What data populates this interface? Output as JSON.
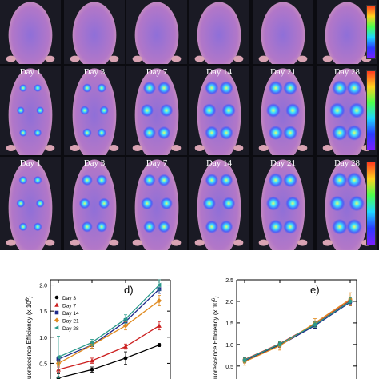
{
  "imaging": {
    "rows": [
      {
        "labels": [
          "",
          "",
          "",
          "",
          "",
          ""
        ],
        "intensity": [
          0.05,
          0.05,
          0.05,
          0.05,
          0.05,
          0.05
        ]
      },
      {
        "labels": [
          "Day 1",
          "Day 3",
          "Day 7",
          "Day 14",
          "Day 21",
          "Day 28"
        ],
        "intensity": [
          0.25,
          0.35,
          0.65,
          0.7,
          0.75,
          0.85
        ]
      },
      {
        "labels": [
          "Day 1",
          "Day 3",
          "Day 7",
          "Day 14",
          "Day 21",
          "Day 28"
        ],
        "intensity": [
          0.3,
          0.5,
          0.6,
          0.65,
          0.75,
          0.85
        ]
      }
    ],
    "colorbar_colors": [
      "#ff3b1f",
      "#ffd21f",
      "#4dff4d",
      "#1fd8ff",
      "#2a3cff",
      "#7a1fff"
    ]
  },
  "chart_data": [
    {
      "type": "line",
      "panel_label": "d)",
      "ylabel": "uorescence Efficiency (x 10",
      "ylabel_exp": "6",
      "ylabel_close": ")",
      "ylim": [
        0.2,
        2.1
      ],
      "yticks": [
        0.5,
        1.0,
        1.5,
        2.0
      ],
      "ytick_labels": [
        "0.5",
        "1.0",
        "1.5",
        "2.0"
      ],
      "x": [
        1,
        2,
        3,
        4
      ],
      "legend_position": "top-left",
      "series": [
        {
          "name": "Day 3",
          "color": "#000000",
          "marker": "circle",
          "values": [
            0.22,
            0.38,
            0.6,
            0.85
          ],
          "errors": [
            0.08,
            0.05,
            0.12,
            0.03
          ]
        },
        {
          "name": "Day 7",
          "color": "#cc1f1f",
          "marker": "triangle-up",
          "values": [
            0.38,
            0.55,
            0.82,
            1.22
          ],
          "errors": [
            0.05,
            0.05,
            0.05,
            0.08
          ]
        },
        {
          "name": "Day 14",
          "color": "#1f2a8a",
          "marker": "square",
          "values": [
            0.58,
            0.85,
            1.3,
            1.92
          ],
          "errors": [
            0.05,
            0.06,
            0.06,
            0.08
          ]
        },
        {
          "name": "Day 21",
          "color": "#e08a1f",
          "marker": "diamond",
          "values": [
            0.5,
            0.85,
            1.22,
            1.7
          ],
          "errors": [
            0.05,
            0.06,
            0.08,
            0.1
          ]
        },
        {
          "name": "Day 28",
          "color": "#2a9a8a",
          "marker": "triangle-left",
          "values": [
            0.62,
            0.9,
            1.35,
            2.0
          ],
          "errors": [
            0.4,
            0.06,
            0.08,
            0.1
          ]
        }
      ]
    },
    {
      "type": "line",
      "panel_label": "e)",
      "ylabel": "uorescence Efficiency (x 10",
      "ylabel_exp": "6",
      "ylabel_close": ")",
      "ylim": [
        0.2,
        2.5
      ],
      "yticks": [
        0.5,
        1.0,
        1.5,
        2.0,
        2.5
      ],
      "ytick_labels": [
        "0.5",
        "1.0",
        "1.5",
        "2.0",
        "2.5"
      ],
      "x": [
        1,
        2,
        3,
        4
      ],
      "series": [
        {
          "color": "#000000",
          "values": [
            0.63,
            1.0,
            1.45,
            2.0
          ],
          "errors": [
            0.05,
            0.05,
            0.08,
            0.1
          ]
        },
        {
          "color": "#cc1f1f",
          "values": [
            0.65,
            1.02,
            1.47,
            2.02
          ],
          "errors": [
            0.05,
            0.05,
            0.06,
            0.08
          ]
        },
        {
          "color": "#1f2a8a",
          "values": [
            0.62,
            0.98,
            1.44,
            1.98
          ],
          "errors": [
            0.05,
            0.05,
            0.06,
            0.08
          ]
        },
        {
          "color": "#e08a1f",
          "values": [
            0.6,
            0.97,
            1.5,
            2.05
          ],
          "errors": [
            0.08,
            0.1,
            0.1,
            0.15
          ]
        },
        {
          "color": "#2a9a8a",
          "values": [
            0.64,
            1.01,
            1.46,
            2.0
          ],
          "errors": [
            0.05,
            0.05,
            0.06,
            0.08
          ]
        }
      ]
    }
  ]
}
